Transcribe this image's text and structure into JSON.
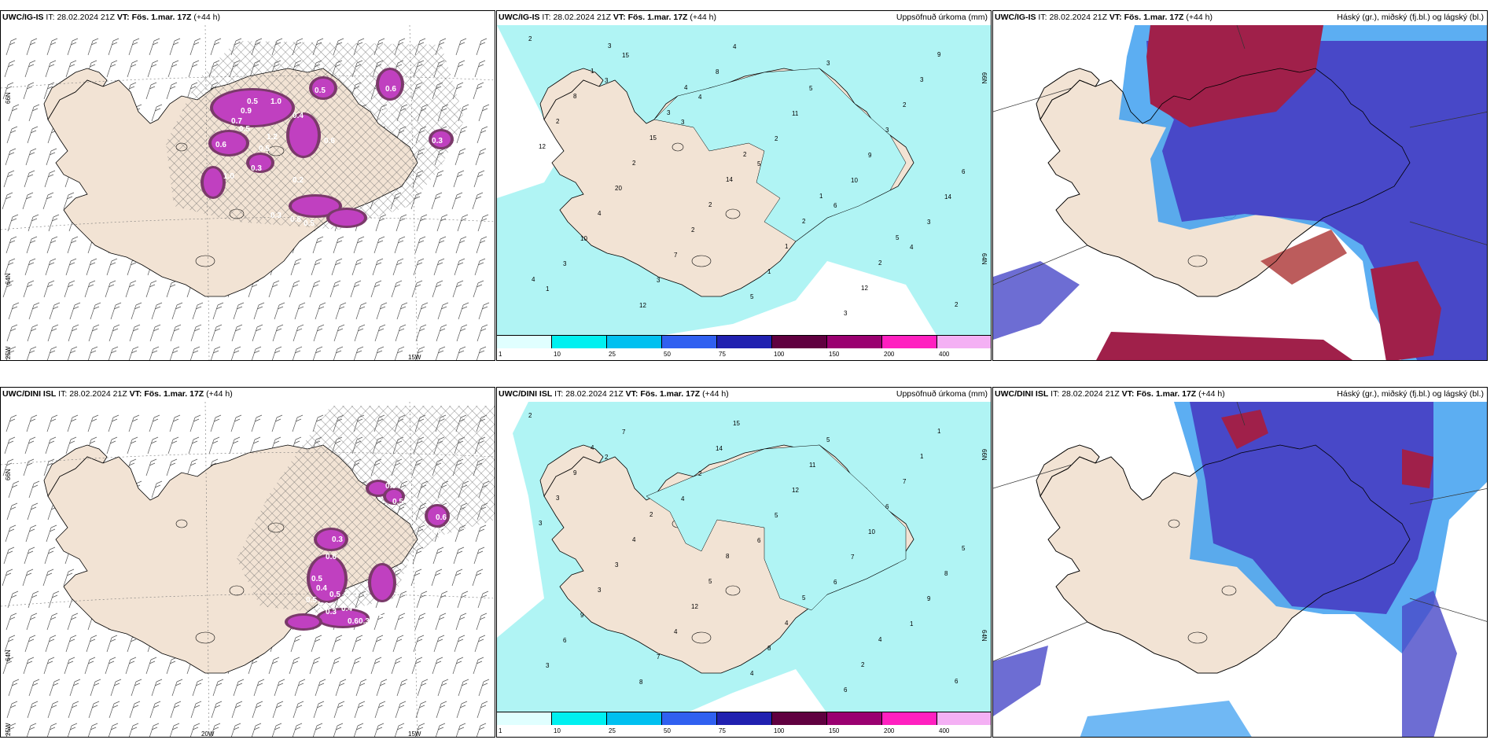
{
  "panels": [
    {
      "model": "UWC/IG-IS",
      "it_label": "IT:",
      "it": "28.02.2024 21Z",
      "vt_label": "VT:",
      "vt": "Fös. 1.mar. 17Z",
      "lead": "(+44 h)",
      "right_title": "",
      "lat_labels": [
        "66N",
        "64N",
        "25W"
      ],
      "lon_labels": [
        "15W"
      ],
      "values": [
        "0.5",
        "1.0",
        "0.7",
        "1.2",
        "0.4",
        "0.5",
        "0.6",
        "0.5",
        "0.3",
        "0.2",
        "0.3",
        "0.8",
        "0.5",
        "1.0",
        "0.9",
        "0.5",
        "0.6",
        "0.5",
        "0.3",
        "0.6"
      ]
    },
    {
      "model": "UWC/IG-IS",
      "it_label": "IT:",
      "it": "28.02.2024 21Z",
      "vt_label": "VT:",
      "vt": "Fös. 1.mar. 17Z",
      "lead": "(+44 h)",
      "right_title": "Uppsöfnuð úrkoma (mm)",
      "lat_labels": [
        "66N",
        "64N"
      ],
      "lon_labels": [],
      "values": [
        "2",
        "3",
        "3",
        "5",
        "6",
        "4",
        "1",
        "15",
        "4",
        "2",
        "10",
        "3",
        "3",
        "12",
        "8",
        "11",
        "9",
        "14",
        "10",
        "3",
        "4",
        "5",
        "3",
        "6",
        "4",
        "7",
        "5",
        "3",
        "2",
        "12",
        "20",
        "2",
        "1",
        "3",
        "3",
        "2",
        "2",
        "2",
        "1",
        "12",
        "9",
        "8",
        "15",
        "14",
        "2",
        "2",
        "2",
        "1",
        "3",
        "2",
        "1",
        "5",
        "4",
        "3",
        "4"
      ]
    },
    {
      "model": "UWC/IG-IS",
      "it_label": "IT:",
      "it": "28.02.2024 21Z",
      "vt_label": "VT:",
      "vt": "Fös. 1.mar. 17Z",
      "lead": "(+44 h)",
      "right_title": "Háský (gr.), miðský (fj.bl.) og lágský (bl.)",
      "lat_labels": [],
      "lon_labels": [],
      "values": []
    },
    {
      "model": "UWC/DINI ISL",
      "it_label": "IT:",
      "it": "28.02.2024 21Z",
      "vt_label": "VT:",
      "vt": "Fös. 1.mar. 17Z",
      "lead": "(+44 h)",
      "right_title": "",
      "lat_labels": [
        "66N",
        "64N",
        "25W"
      ],
      "lon_labels": [
        "20W",
        "15W"
      ],
      "values": [
        "0.3",
        "0.4",
        "0.5",
        "0.6",
        "0.5",
        "0.4",
        "0.6",
        "0.3",
        "0.2",
        "0.3",
        "0.5",
        "0.6",
        "0.9",
        "0.5",
        "0.6",
        "0.8"
      ]
    },
    {
      "model": "UWC/DINI ISL",
      "it_label": "IT:",
      "it": "28.02.2024 21Z",
      "vt_label": "VT:",
      "vt": "Fös. 1.mar. 17Z",
      "lead": "(+44 h)",
      "right_title": "Uppsöfnuð úrkoma (mm)",
      "lat_labels": [
        "66N",
        "64N"
      ],
      "lon_labels": [],
      "values": [
        "2",
        "2",
        "4",
        "6",
        "6",
        "1",
        "3",
        "7",
        "2",
        "5",
        "7",
        "9",
        "6",
        "8",
        "14",
        "12",
        "10",
        "8",
        "9",
        "7",
        "15",
        "11",
        "6",
        "5",
        "3",
        "4",
        "4",
        "5",
        "7",
        "3",
        "3",
        "12",
        "8",
        "6",
        "1",
        "3",
        "4",
        "5",
        "4",
        "2",
        "1",
        "9",
        "2",
        "8",
        "5",
        "4",
        "6",
        "4"
      ]
    },
    {
      "model": "UWC/DINI ISL",
      "it_label": "IT:",
      "it": "28.02.2024 21Z",
      "vt_label": "VT:",
      "vt": "Fös. 1.mar. 17Z",
      "lead": "(+44 h)",
      "right_title": "Háský (gr.), miðský (fj.bl.) og lágský (bl.)",
      "lat_labels": [],
      "lon_labels": [],
      "values": []
    }
  ],
  "colorbar": {
    "labels": [
      "1",
      "10",
      "25",
      "50",
      "75",
      "100",
      "150",
      "200",
      "400"
    ],
    "colors": [
      "#e0ffff",
      "#00f0f0",
      "#00c0f0",
      "#3060f0",
      "#2020b0",
      "#600040",
      "#9a0070",
      "#ff20c0",
      "#f4b0f4"
    ]
  },
  "colors": {
    "land": "#f2e3d4",
    "precip_light": "#b0f4f4",
    "snow_purple": "#c040c0",
    "cloud_high": "#a0204a",
    "cloud_mid": "#4848c8",
    "cloud_low": "#40a0f0"
  }
}
